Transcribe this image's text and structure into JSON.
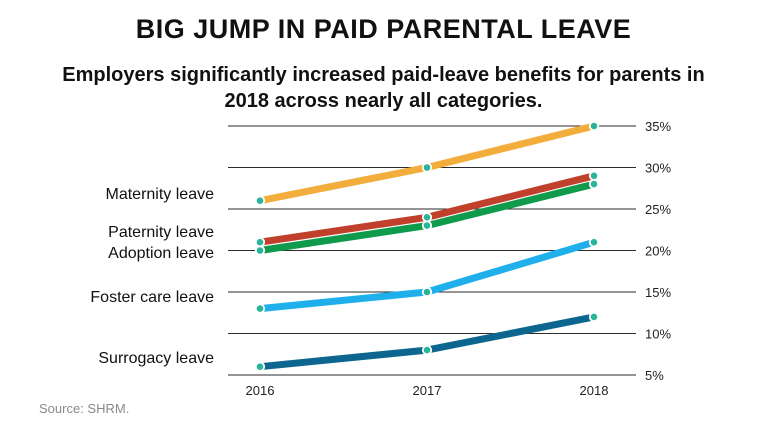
{
  "chart_data": {
    "type": "line",
    "title": "BIG JUMP IN PAID PARENTAL LEAVE",
    "subtitle": "Employers significantly increased paid-leave benefits for parents in 2018 across nearly all categories.",
    "categories": [
      "2016",
      "2017",
      "2018"
    ],
    "ylim": [
      5,
      35
    ],
    "yticks": [
      "5%",
      "10%",
      "15%",
      "20%",
      "25%",
      "30%",
      "35%"
    ],
    "ytick_values": [
      5,
      10,
      15,
      20,
      25,
      30,
      35
    ],
    "y_axis_position": "right",
    "grid": true,
    "series": [
      {
        "name": "Maternity leave",
        "values": [
          26,
          30,
          35
        ],
        "color": "#f2ad3d"
      },
      {
        "name": "Paternity leave",
        "values": [
          21,
          24,
          29
        ],
        "color": "#c0402b"
      },
      {
        "name": "Adoption leave",
        "values": [
          20,
          23,
          28
        ],
        "color": "#0f9a4c"
      },
      {
        "name": "Foster care leave",
        "values": [
          13,
          15,
          21
        ],
        "color": "#1fb0ec"
      },
      {
        "name": "Surrogacy leave",
        "values": [
          6,
          8,
          12
        ],
        "color": "#0d6690"
      }
    ],
    "marker_color": "#2ab59a",
    "source": "Source: SHRM."
  }
}
